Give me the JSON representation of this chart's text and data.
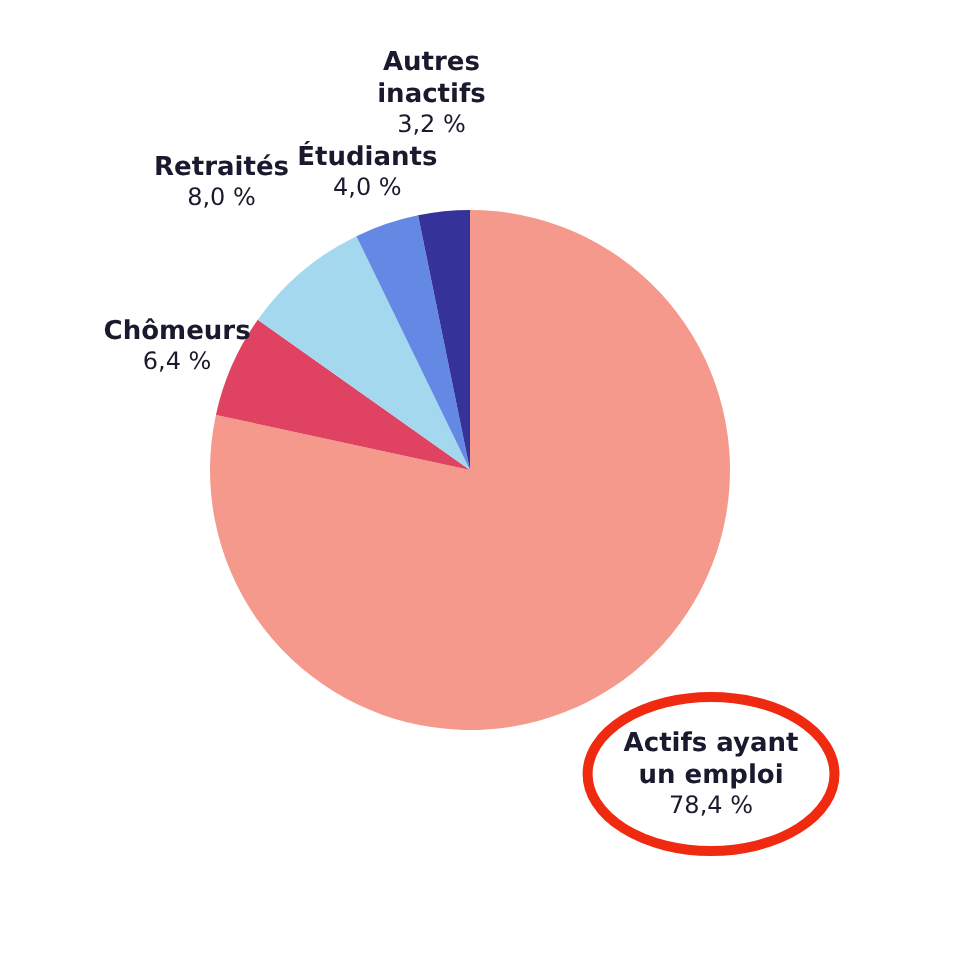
{
  "chart_data": {
    "type": "pie",
    "categories": [
      "Actifs ayant un emploi",
      "Chômeurs",
      "Retraités",
      "Étudiants",
      "Autres inactifs"
    ],
    "values": [
      78.4,
      6.4,
      8.0,
      4.0,
      3.2
    ],
    "value_labels": [
      "78,4 %",
      "6,4 %",
      "8,0 %",
      "4,0 %",
      "3,2 %"
    ],
    "colors": [
      "#f6998d",
      "#e04262",
      "#a3d8ef",
      "#6489e4",
      "#35339a"
    ]
  }
}
